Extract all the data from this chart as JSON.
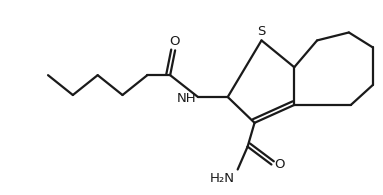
{
  "background": "#ffffff",
  "line_color": "#1a1a1a",
  "line_width": 1.6,
  "figsize": [
    3.83,
    1.95
  ],
  "dpi": 100,
  "xlim": [
    0,
    383
  ],
  "ylim": [
    0,
    195
  ]
}
